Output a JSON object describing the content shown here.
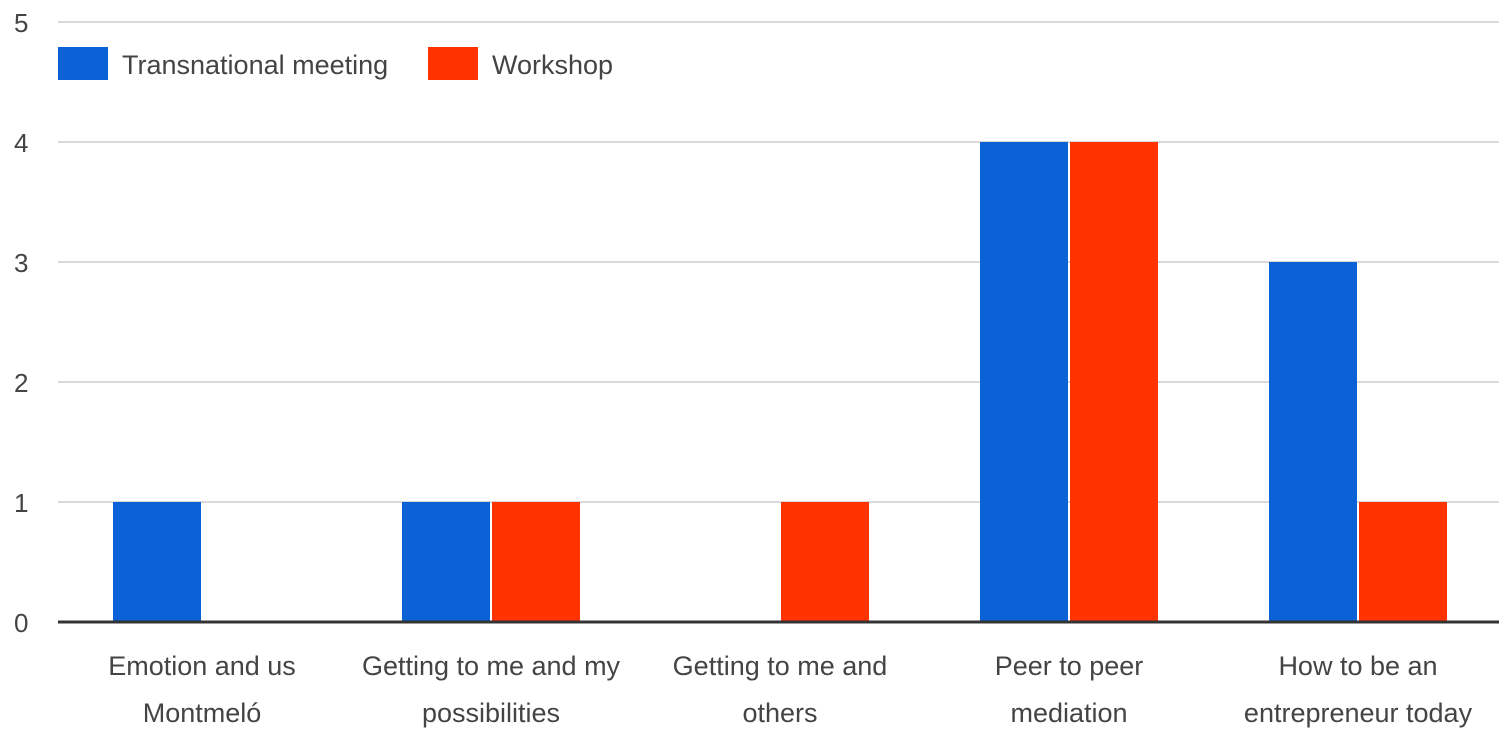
{
  "chart_data": {
    "type": "bar",
    "categories": [
      [
        "Emotion and us",
        "Montmeló"
      ],
      [
        "Getting to me and my",
        "possibilities"
      ],
      [
        "Getting to me and",
        "others"
      ],
      [
        "Peer to peer",
        "mediation"
      ],
      [
        "How to be an",
        "entrepreneur today"
      ]
    ],
    "series": [
      {
        "name": "Transnational meeting",
        "color": "#0a62d6",
        "values": [
          1,
          1,
          0,
          4,
          3
        ]
      },
      {
        "name": "Workshop",
        "color": "#ff3300",
        "values": [
          0,
          1,
          1,
          4,
          1
        ]
      }
    ],
    "y_ticks": [
      "0",
      "1",
      "2",
      "3",
      "4",
      "5"
    ],
    "ylim": [
      0,
      5
    ],
    "grid": true,
    "legend": "top-left"
  }
}
